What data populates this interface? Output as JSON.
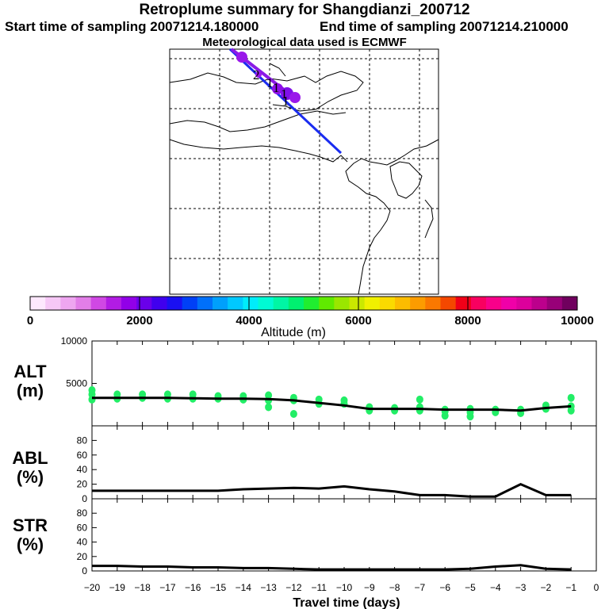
{
  "header": {
    "title": "Retroplume summary for Shangdianzi_200712",
    "start_label": "Start time of sampling 20071214.180000",
    "end_label": "End time of sampling 20071214.210000",
    "met_label": "Meteorological data used is ECMWF"
  },
  "colorbar": {
    "axis_label": "Altitude (m)",
    "tick_labels": [
      "0",
      "2000",
      "4000",
      "6000",
      "8000",
      "10000"
    ],
    "colors": [
      "#fde8fd",
      "#f6c8f6",
      "#eea6f0",
      "#e27ee8",
      "#d048e4",
      "#b21ce4",
      "#9200e8",
      "#6a00ea",
      "#4000ee",
      "#1a10f2",
      "#0040f6",
      "#0070fa",
      "#00a0fc",
      "#00c8fe",
      "#00ecfa",
      "#00fad4",
      "#00f6a4",
      "#00f070",
      "#20ee30",
      "#60ea00",
      "#9ae600",
      "#cae800",
      "#f0f000",
      "#fada00",
      "#fcbc00",
      "#fc9c00",
      "#fa7800",
      "#f44800",
      "#f00018",
      "#f80060",
      "#f8008a",
      "#f000a8",
      "#dc009c",
      "#bc008c",
      "#980078",
      "#70005e"
    ]
  },
  "panels": {
    "alt_label": "ALT",
    "alt_unit": "(m)",
    "abl_label": "ABL",
    "abl_unit": "(%)",
    "str_label": "STR",
    "str_unit": "(%)",
    "x_axis_label": "Travel time (days)",
    "marker_numbers": [
      "2",
      "1",
      "1",
      "1",
      "1"
    ]
  },
  "chart_data": [
    {
      "type": "line",
      "name": "ALT",
      "ylabel": "ALT (m)",
      "ylim": [
        0,
        10000
      ],
      "yticks": [
        10000,
        5000
      ],
      "xlim": [
        -20,
        0
      ],
      "x": [
        -20,
        -19,
        -18,
        -17,
        -16,
        -15,
        -14,
        -13,
        -12,
        -11,
        -10,
        -9,
        -8,
        -7,
        -6,
        -5,
        -4,
        -3,
        -2,
        -1
      ],
      "values": [
        3300,
        3300,
        3300,
        3300,
        3250,
        3200,
        3200,
        3150,
        3000,
        2700,
        2400,
        2000,
        2000,
        2000,
        1900,
        1900,
        1900,
        1800,
        2100,
        2300
      ],
      "scatter_color": "#22ee66",
      "scatter_points": [
        [
          -20,
          3100
        ],
        [
          -20,
          3700
        ],
        [
          -20,
          4200
        ],
        [
          -19,
          3200
        ],
        [
          -19,
          3700
        ],
        [
          -18,
          3300
        ],
        [
          -18,
          3700
        ],
        [
          -17,
          3200
        ],
        [
          -17,
          3700
        ],
        [
          -16,
          3200
        ],
        [
          -16,
          3700
        ],
        [
          -15,
          3200
        ],
        [
          -15,
          3500
        ],
        [
          -14,
          3100
        ],
        [
          -14,
          3500
        ],
        [
          -13,
          3000
        ],
        [
          -13,
          3600
        ],
        [
          -13,
          2200
        ],
        [
          -12,
          3000
        ],
        [
          -12,
          3300
        ],
        [
          -12,
          1400
        ],
        [
          -11,
          2600
        ],
        [
          -11,
          3100
        ],
        [
          -10,
          2600
        ],
        [
          -10,
          3000
        ],
        [
          -9,
          1800
        ],
        [
          -9,
          2200
        ],
        [
          -8,
          1800
        ],
        [
          -8,
          2100
        ],
        [
          -7,
          1800
        ],
        [
          -7,
          2200
        ],
        [
          -7,
          3100
        ],
        [
          -6,
          1700
        ],
        [
          -6,
          1900
        ],
        [
          -6,
          1200
        ],
        [
          -5,
          1600
        ],
        [
          -5,
          2000
        ],
        [
          -5,
          1100
        ],
        [
          -4,
          1600
        ],
        [
          -4,
          1900
        ],
        [
          -3,
          1500
        ],
        [
          -3,
          1900
        ],
        [
          -2,
          2000
        ],
        [
          -2,
          2400
        ],
        [
          -1,
          1800
        ],
        [
          -1,
          2300
        ],
        [
          -1,
          3300
        ]
      ]
    },
    {
      "type": "line",
      "name": "ABL",
      "ylabel": "ABL (%)",
      "ylim": [
        0,
        100
      ],
      "yticks": [
        0,
        20,
        40,
        60,
        80
      ],
      "xlim": [
        -20,
        0
      ],
      "x": [
        -20,
        -19,
        -18,
        -17,
        -16,
        -15,
        -14,
        -13,
        -12,
        -11,
        -10,
        -9,
        -8,
        -7,
        -6,
        -5,
        -4,
        -3,
        -2,
        -1
      ],
      "values": [
        11,
        11,
        11,
        11,
        11,
        11,
        13,
        14,
        15,
        14,
        17,
        13,
        10,
        5,
        5,
        3,
        3,
        20,
        5,
        5
      ]
    },
    {
      "type": "line",
      "name": "STR",
      "ylabel": "STR (%)",
      "ylim": [
        0,
        100
      ],
      "yticks": [
        0,
        20,
        40,
        60,
        80
      ],
      "xlim": [
        -20,
        0
      ],
      "x": [
        -20,
        -19,
        -18,
        -17,
        -16,
        -15,
        -14,
        -13,
        -12,
        -11,
        -10,
        -9,
        -8,
        -7,
        -6,
        -5,
        -4,
        -3,
        -2,
        -1
      ],
      "values": [
        7,
        7,
        6,
        6,
        5,
        5,
        4,
        4,
        3,
        2,
        2,
        2,
        2,
        2,
        2,
        3,
        6,
        8,
        3,
        2
      ],
      "xticks": [
        -20,
        -19,
        -18,
        -17,
        -16,
        -15,
        -14,
        -13,
        -12,
        -11,
        -10,
        -9,
        -8,
        -7,
        -6,
        -5,
        -4,
        -3,
        -2,
        -1,
        0
      ],
      "xtick_labels": [
        "−20",
        "−19",
        "−18",
        "−17",
        "−16",
        "−15",
        "−14",
        "−13",
        "−12",
        "−11",
        "−10",
        "−9",
        "−8",
        "−7",
        "−6",
        "−5",
        "−4",
        "−3",
        "−2",
        "−1",
        "0"
      ],
      "xlabel": "Travel time (days)"
    }
  ]
}
